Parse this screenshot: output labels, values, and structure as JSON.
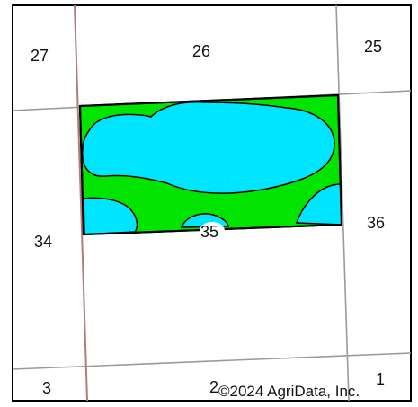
{
  "map": {
    "section_labels": {
      "s27": "27",
      "s26": "26",
      "s25": "25",
      "s34": "34",
      "s35": "35",
      "s36": "36",
      "s3": "3",
      "s2": "2",
      "s1": "1"
    },
    "copyright": "©2024 AgriData, Inc."
  },
  "colors": {
    "water_zone": "#00e5ff",
    "wetland_zone": "#00e400",
    "section_line": "#9a9a9a",
    "road_line": "#b57a7a",
    "field_outline": "#000000",
    "border": "#000000"
  }
}
